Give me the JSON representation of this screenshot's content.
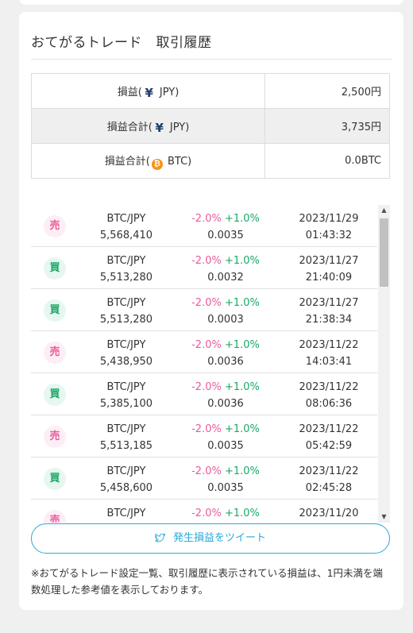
{
  "title": "おてがるトレード　取引履歴",
  "summary": [
    {
      "label_pre": "損益(",
      "icon": "yen",
      "icon_char": "¥",
      "label_post": " JPY)",
      "value": "2,500円"
    },
    {
      "label_pre": "損益合計(",
      "icon": "yen",
      "icon_char": "¥",
      "label_post": " JPY)",
      "value": "3,735円"
    },
    {
      "label_pre": "損益合計(",
      "icon": "btc",
      "icon_char": "₿",
      "label_post": " BTC)",
      "value": "0.0BTC"
    }
  ],
  "trades": [
    {
      "side": "売",
      "type": "sell",
      "pair": "BTC/JPY",
      "price": "5,568,410",
      "loss": "-2.0%",
      "gain": "+1.0%",
      "qty": "0.0035",
      "date": "2023/11/29",
      "time": "01:43:32"
    },
    {
      "side": "買",
      "type": "buy",
      "pair": "BTC/JPY",
      "price": "5,513,280",
      "loss": "-2.0%",
      "gain": "+1.0%",
      "qty": "0.0032",
      "date": "2023/11/27",
      "time": "21:40:09"
    },
    {
      "side": "買",
      "type": "buy",
      "pair": "BTC/JPY",
      "price": "5,513,280",
      "loss": "-2.0%",
      "gain": "+1.0%",
      "qty": "0.0003",
      "date": "2023/11/27",
      "time": "21:38:34"
    },
    {
      "side": "売",
      "type": "sell",
      "pair": "BTC/JPY",
      "price": "5,438,950",
      "loss": "-2.0%",
      "gain": "+1.0%",
      "qty": "0.0036",
      "date": "2023/11/22",
      "time": "14:03:41"
    },
    {
      "side": "買",
      "type": "buy",
      "pair": "BTC/JPY",
      "price": "5,385,100",
      "loss": "-2.0%",
      "gain": "+1.0%",
      "qty": "0.0036",
      "date": "2023/11/22",
      "time": "08:06:36"
    },
    {
      "side": "売",
      "type": "sell",
      "pair": "BTC/JPY",
      "price": "5,513,185",
      "loss": "-2.0%",
      "gain": "+1.0%",
      "qty": "0.0035",
      "date": "2023/11/22",
      "time": "05:42:59"
    },
    {
      "side": "買",
      "type": "buy",
      "pair": "BTC/JPY",
      "price": "5,458,600",
      "loss": "-2.0%",
      "gain": "+1.0%",
      "qty": "0.0035",
      "date": "2023/11/22",
      "time": "02:45:28"
    },
    {
      "side": "売",
      "type": "sell",
      "pair": "BTC/JPY",
      "price": "",
      "loss": "-2.0%",
      "gain": "+1.0%",
      "qty": "",
      "date": "2023/11/20",
      "time": ""
    }
  ],
  "tweet_button": "発生損益をツイート",
  "note": "※おてがるトレード設定一覧、取引履歴に表示されている損益は、1円未満を端数処理した参考値を表示しております。",
  "colors": {
    "accent": "#2aa8d8",
    "sell": "#e95a9b",
    "buy": "#1aa866"
  }
}
